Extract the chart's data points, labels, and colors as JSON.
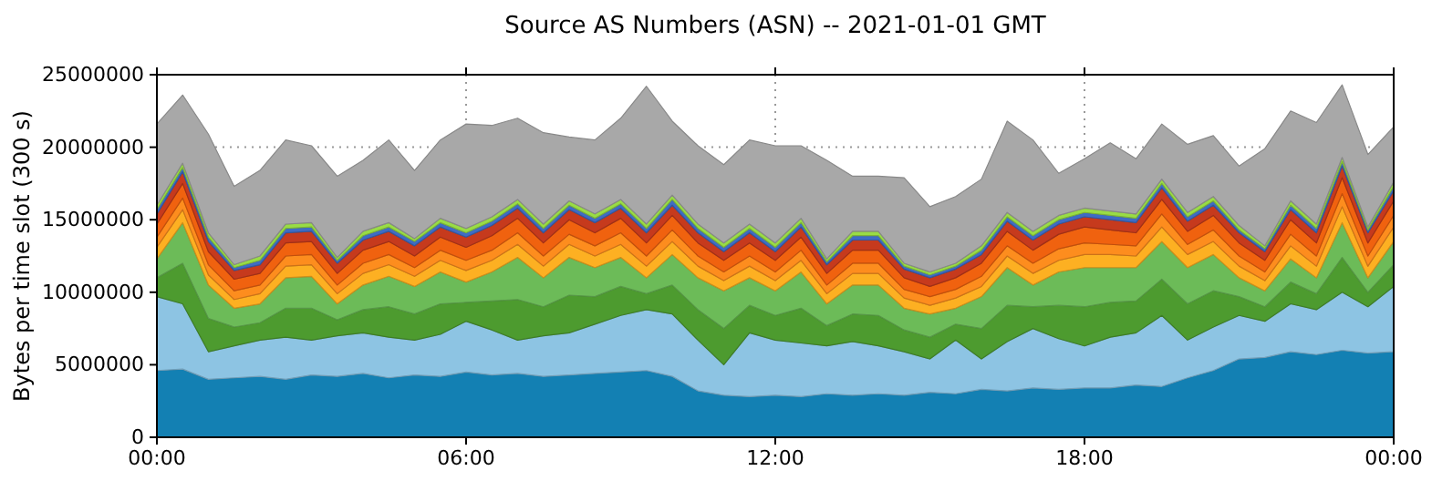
{
  "chart_data": {
    "type": "area",
    "stacked": true,
    "title": "Source AS Numbers (ASN) -- 2021-01-01 GMT",
    "ylabel": "Bytes per time slot (300 s)",
    "x": [
      0,
      0.5,
      1,
      1.5,
      2,
      2.5,
      3,
      3.5,
      4,
      4.5,
      5,
      5.5,
      6,
      6.5,
      7,
      7.5,
      8,
      8.5,
      9,
      9.5,
      10,
      10.5,
      11,
      11.5,
      12,
      12.5,
      13,
      13.5,
      14,
      14.5,
      15,
      15.5,
      16,
      16.5,
      17,
      17.5,
      18,
      18.5,
      19,
      19.5,
      20,
      20.5,
      21,
      21.5,
      22,
      22.5,
      23,
      23.5,
      24
    ],
    "xlim": [
      0,
      24
    ],
    "xticks": [
      {
        "value": 0,
        "label": "00:00"
      },
      {
        "value": 6,
        "label": "06:00"
      },
      {
        "value": 12,
        "label": "12:00"
      },
      {
        "value": 18,
        "label": "18:00"
      },
      {
        "value": 24,
        "label": "00:00"
      }
    ],
    "ylim": [
      0,
      25000000
    ],
    "yticks": [
      0,
      5000000,
      10000000,
      15000000,
      20000000,
      25000000
    ],
    "grid": true,
    "series": [
      {
        "color": "#1380b3",
        "values": [
          4600000,
          4700000,
          4000000,
          4100000,
          4200000,
          4000000,
          4300000,
          4200000,
          4400000,
          4100000,
          4300000,
          4200000,
          4500000,
          4300000,
          4400000,
          4200000,
          4300000,
          4400000,
          4500000,
          4600000,
          4200000,
          3200000,
          2900000,
          2800000,
          2900000,
          2800000,
          3000000,
          2900000,
          3000000,
          2900000,
          3100000,
          3000000,
          3300000,
          3200000,
          3400000,
          3300000,
          3400000,
          3400000,
          3600000,
          3500000,
          4100000,
          4600000,
          5400000,
          5500000,
          5900000,
          5700000,
          6000000,
          5800000,
          5900000
        ]
      },
      {
        "color": "#8dc4e3",
        "values": [
          5100000,
          4500000,
          1900000,
          2200000,
          2500000,
          2900000,
          2400000,
          2800000,
          2800000,
          2800000,
          2400000,
          2900000,
          3500000,
          3100000,
          2300000,
          2800000,
          2900000,
          3400000,
          3900000,
          4200000,
          4300000,
          3500000,
          2100000,
          4400000,
          3800000,
          3700000,
          3300000,
          3700000,
          3300000,
          3000000,
          2300000,
          3700000,
          2100000,
          3400000,
          4100000,
          3500000,
          2900000,
          3500000,
          3600000,
          4900000,
          2600000,
          3000000,
          3000000,
          2500000,
          3300000,
          3100000,
          4000000,
          3200000,
          4500000
        ]
      },
      {
        "color": "#4d9b2f",
        "values": [
          1300000,
          2800000,
          2300000,
          1300000,
          1200000,
          2000000,
          2200000,
          1100000,
          1600000,
          2100000,
          1800000,
          2100000,
          1300000,
          2000000,
          2800000,
          2000000,
          2600000,
          1900000,
          2000000,
          1100000,
          2000000,
          2100000,
          2500000,
          1900000,
          1700000,
          2400000,
          1400000,
          1900000,
          2100000,
          1500000,
          1500000,
          1100000,
          2100000,
          2500000,
          1500000,
          2300000,
          2700000,
          2400000,
          2200000,
          2500000,
          2500000,
          2500000,
          1300000,
          1000000,
          1500000,
          1100000,
          2400000,
          1000000,
          1500000
        ]
      },
      {
        "color": "#6cbb58",
        "values": [
          1300000,
          2800000,
          2300000,
          1300000,
          1300000,
          2100000,
          2200000,
          1100000,
          1700000,
          2100000,
          1900000,
          2200000,
          1400000,
          2000000,
          2900000,
          2000000,
          2600000,
          2000000,
          2000000,
          1100000,
          2100000,
          2200000,
          2600000,
          1900000,
          1700000,
          2500000,
          1500000,
          2000000,
          2100000,
          1500000,
          1600000,
          1100000,
          2200000,
          2600000,
          1500000,
          2300000,
          2700000,
          2400000,
          2300000,
          2600000,
          2500000,
          2500000,
          1300000,
          1100000,
          1600000,
          1100000,
          2400000,
          1000000,
          1600000
        ]
      },
      {
        "color": "#fdb022",
        "values": [
          800000,
          900000,
          700000,
          600000,
          700000,
          800000,
          800000,
          700000,
          800000,
          800000,
          700000,
          800000,
          800000,
          800000,
          900000,
          800000,
          900000,
          800000,
          900000,
          800000,
          900000,
          800000,
          700000,
          800000,
          700000,
          800000,
          700000,
          800000,
          800000,
          700000,
          600000,
          700000,
          700000,
          800000,
          800000,
          800000,
          900000,
          900000,
          800000,
          1000000,
          900000,
          900000,
          800000,
          700000,
          900000,
          800000,
          1100000,
          800000,
          1000000
        ]
      },
      {
        "color": "#fd8d1e",
        "values": [
          700000,
          800000,
          700000,
          600000,
          600000,
          700000,
          700000,
          600000,
          700000,
          700000,
          600000,
          700000,
          700000,
          700000,
          800000,
          700000,
          700000,
          700000,
          800000,
          700000,
          800000,
          700000,
          600000,
          700000,
          600000,
          700000,
          600000,
          700000,
          700000,
          600000,
          600000,
          600000,
          700000,
          700000,
          700000,
          800000,
          800000,
          700000,
          700000,
          900000,
          700000,
          800000,
          700000,
          600000,
          800000,
          700000,
          900000,
          700000,
          800000
        ]
      },
      {
        "color": "#f0620f",
        "values": [
          900000,
          1000000,
          900000,
          800000,
          800000,
          900000,
          900000,
          800000,
          900000,
          900000,
          800000,
          900000,
          900000,
          1000000,
          1000000,
          900000,
          1000000,
          900000,
          1000000,
          900000,
          1000000,
          900000,
          800000,
          900000,
          800000,
          900000,
          800000,
          900000,
          900000,
          800000,
          700000,
          800000,
          900000,
          1000000,
          900000,
          1000000,
          1100000,
          1000000,
          900000,
          1000000,
          900000,
          1000000,
          900000,
          800000,
          1000000,
          900000,
          1100000,
          900000,
          1000000
        ]
      },
      {
        "color": "#c63a1d",
        "values": [
          700000,
          800000,
          700000,
          600000,
          600000,
          700000,
          700000,
          700000,
          700000,
          700000,
          700000,
          700000,
          700000,
          700000,
          700000,
          700000,
          700000,
          700000,
          700000,
          700000,
          700000,
          700000,
          600000,
          700000,
          600000,
          700000,
          600000,
          700000,
          700000,
          600000,
          600000,
          600000,
          600000,
          700000,
          700000,
          700000,
          700000,
          700000,
          700000,
          800000,
          700000,
          700000,
          700000,
          600000,
          700000,
          700000,
          800000,
          700000,
          700000
        ]
      },
      {
        "color": "#3f6cc4",
        "values": [
          300000,
          300000,
          300000,
          200000,
          300000,
          300000,
          300000,
          200000,
          300000,
          300000,
          300000,
          300000,
          300000,
          300000,
          300000,
          300000,
          300000,
          300000,
          300000,
          300000,
          400000,
          300000,
          300000,
          300000,
          300000,
          300000,
          200000,
          300000,
          300000,
          200000,
          200000,
          200000,
          300000,
          300000,
          300000,
          300000,
          300000,
          300000,
          300000,
          300000,
          300000,
          300000,
          200000,
          200000,
          300000,
          300000,
          300000,
          200000,
          300000
        ]
      },
      {
        "color": "#99dc45",
        "values": [
          300000,
          300000,
          300000,
          200000,
          300000,
          300000,
          300000,
          200000,
          300000,
          300000,
          200000,
          300000,
          300000,
          300000,
          300000,
          300000,
          300000,
          300000,
          300000,
          300000,
          300000,
          300000,
          300000,
          300000,
          300000,
          300000,
          200000,
          300000,
          300000,
          200000,
          200000,
          200000,
          300000,
          300000,
          300000,
          300000,
          300000,
          300000,
          300000,
          300000,
          300000,
          300000,
          300000,
          200000,
          300000,
          300000,
          300000,
          200000,
          300000
        ]
      },
      {
        "color": "#a8a8a8",
        "values": [
          5600000,
          4700000,
          6800000,
          5400000,
          5900000,
          5800000,
          5300000,
          5600000,
          4900000,
          5700000,
          4700000,
          5400000,
          7200000,
          6300000,
          5600000,
          6300000,
          4400000,
          5100000,
          5600000,
          9500000,
          5100000,
          5400000,
          5400000,
          5800000,
          6700000,
          5000000,
          6800000,
          3800000,
          3800000,
          5900000,
          4500000,
          4600000,
          4600000,
          6300000,
          6300000,
          2900000,
          3400000,
          4700000,
          3800000,
          3800000,
          4700000,
          4200000,
          4100000,
          6700000,
          6200000,
          7000000,
          5000000,
          5000000,
          3800000
        ]
      }
    ]
  }
}
